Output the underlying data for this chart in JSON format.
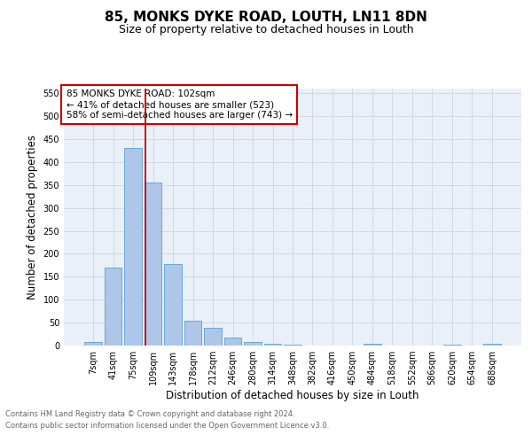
{
  "title": "85, MONKS DYKE ROAD, LOUTH, LN11 8DN",
  "subtitle": "Size of property relative to detached houses in Louth",
  "xlabel": "Distribution of detached houses by size in Louth",
  "ylabel": "Number of detached properties",
  "footnote1": "Contains HM Land Registry data © Crown copyright and database right 2024.",
  "footnote2": "Contains public sector information licensed under the Open Government Licence v3.0.",
  "bar_labels": [
    "7sqm",
    "41sqm",
    "75sqm",
    "109sqm",
    "143sqm",
    "178sqm",
    "212sqm",
    "246sqm",
    "280sqm",
    "314sqm",
    "348sqm",
    "382sqm",
    "416sqm",
    "450sqm",
    "484sqm",
    "518sqm",
    "552sqm",
    "586sqm",
    "620sqm",
    "654sqm",
    "688sqm"
  ],
  "bar_values": [
    8,
    170,
    430,
    355,
    178,
    55,
    38,
    18,
    8,
    3,
    2,
    0,
    0,
    0,
    3,
    0,
    0,
    0,
    2,
    0,
    3
  ],
  "bar_color": "#aec6e8",
  "bar_edge_color": "#5a9fd4",
  "vline_index": 2.6,
  "vline_color": "#cc0000",
  "annotation_text": "85 MONKS DYKE ROAD: 102sqm\n← 41% of detached houses are smaller (523)\n58% of semi-detached houses are larger (743) →",
  "annotation_box_color": "#cc0000",
  "ylim": [
    0,
    560
  ],
  "yticks": [
    0,
    50,
    100,
    150,
    200,
    250,
    300,
    350,
    400,
    450,
    500,
    550
  ],
  "bg_color": "#ffffff",
  "grid_color": "#d0d8e8",
  "title_fontsize": 11,
  "subtitle_fontsize": 9,
  "axis_label_fontsize": 8.5,
  "tick_fontsize": 7,
  "annotation_fontsize": 7.5,
  "footnote_fontsize": 6,
  "footnote_color": "#666666"
}
